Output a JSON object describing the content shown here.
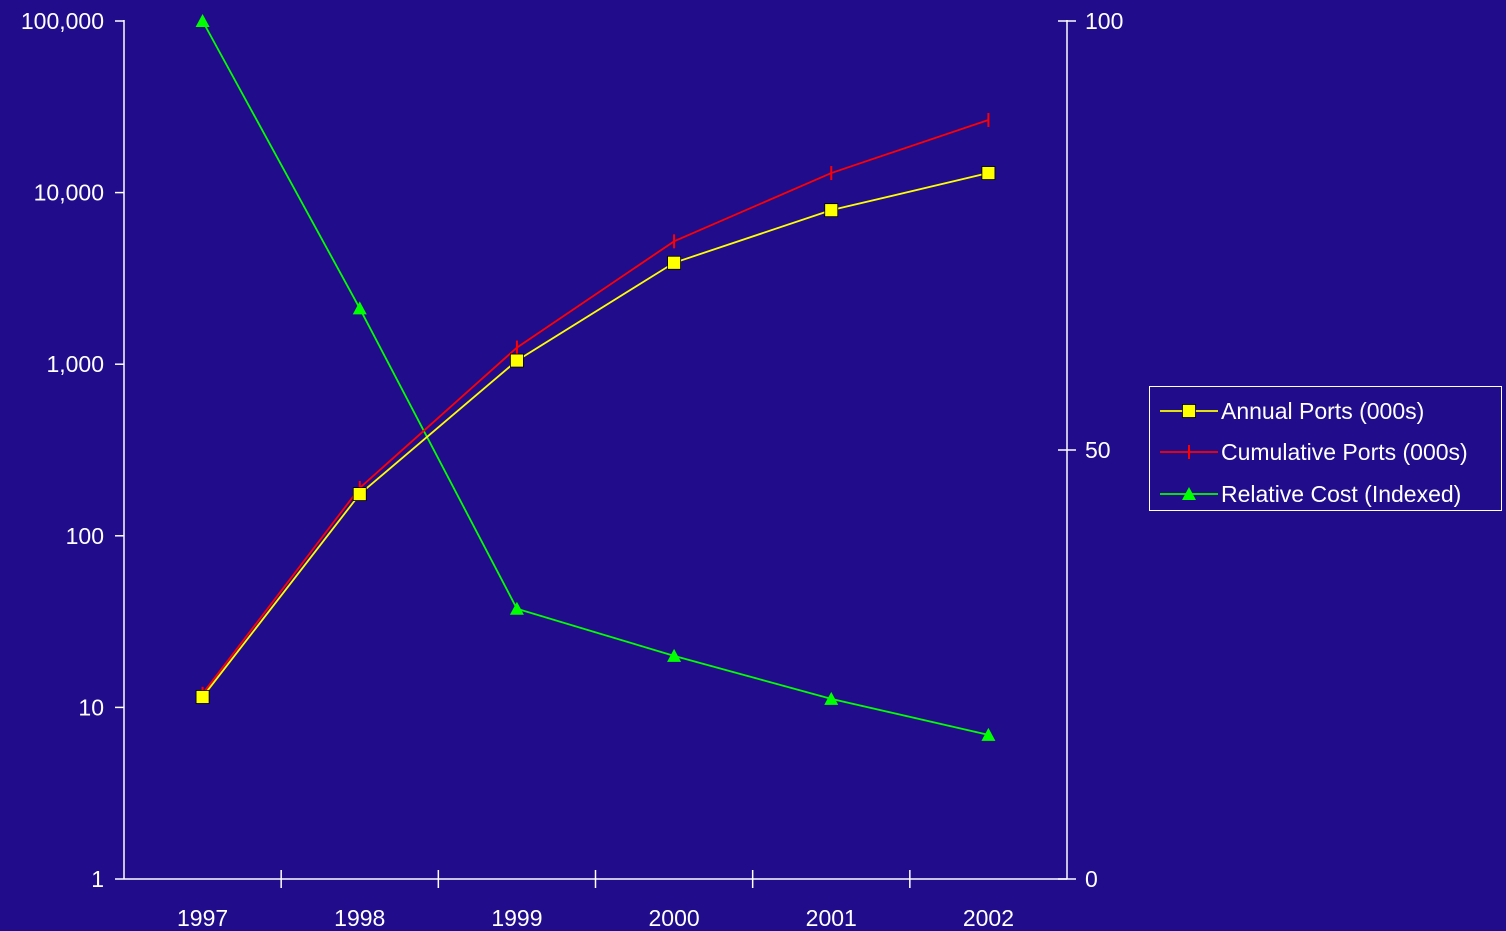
{
  "colors": {
    "background": "#210C8C",
    "axis": "#FFFFFF",
    "text": "#FFFFFF",
    "annual": "#FFFF00",
    "cumulative": "#FF0000",
    "relative": "#00FF00"
  },
  "chart_data": {
    "type": "line",
    "title": "",
    "xlabel": "",
    "ylabel": "",
    "y2label": "",
    "categories": [
      "1997",
      "1998",
      "1999",
      "2000",
      "2001",
      "2002"
    ],
    "y_axis_left": {
      "scale": "log",
      "range": [
        1,
        100000
      ],
      "ticks": [
        1,
        10,
        100,
        1000,
        10000,
        100000
      ],
      "tick_labels": [
        "1",
        "10",
        "100",
        "1,000",
        "10,000",
        "100,000"
      ]
    },
    "y_axis_right": {
      "scale": "linear",
      "range": [
        0,
        100
      ],
      "ticks": [
        0,
        50,
        100
      ],
      "tick_labels": [
        "0",
        "50",
        "100"
      ]
    },
    "grid": false,
    "legend_position": "right",
    "series": [
      {
        "name": "Annual Ports (000s)",
        "axis": "left",
        "marker": "square",
        "color_key": "annual",
        "values": [
          11.5,
          175,
          1050,
          3900,
          7900,
          13000
        ]
      },
      {
        "name": "Cumulative Ports (000s)",
        "axis": "left",
        "marker": "tick",
        "color_key": "cumulative",
        "values": [
          12,
          190,
          1250,
          5200,
          13000,
          26500
        ]
      },
      {
        "name": "Relative Cost (Indexed)",
        "axis": "right",
        "marker": "triangle",
        "color_key": "relative",
        "values": [
          100,
          66.5,
          31.5,
          26,
          21,
          16.8
        ]
      }
    ]
  }
}
